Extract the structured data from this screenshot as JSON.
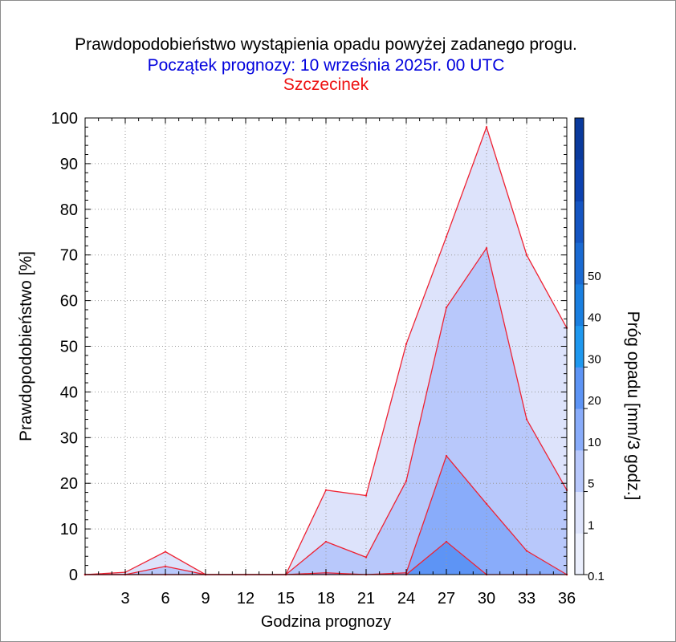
{
  "title": "Prawdopodobieństwo wystąpienia opadu powyżej zadanego progu.",
  "subtitle": "Początek prognozy: 10 września 2025r. 00 UTC",
  "location": "Szczecinek",
  "colors": {
    "title": "#000000",
    "subtitle": "#0000dd",
    "location": "#ee1111",
    "series_line": "#ee2233",
    "frame": "#8c8c8c"
  },
  "chart_data": {
    "type": "area",
    "xlabel": "Godzina prognozy",
    "ylabel": "Prawdopodobieństwo [%]",
    "x": [
      0,
      3,
      6,
      9,
      12,
      15,
      18,
      21,
      24,
      27,
      30,
      33,
      36
    ],
    "xticks": [
      3,
      6,
      9,
      12,
      15,
      18,
      21,
      24,
      27,
      30,
      33,
      36
    ],
    "xlim": [
      0,
      36
    ],
    "ylim": [
      0,
      100
    ],
    "yticks": [
      0,
      10,
      20,
      30,
      40,
      50,
      60,
      70,
      80,
      90,
      100
    ],
    "grid": true,
    "series": [
      {
        "name": "0.1",
        "color": "#dde3fb",
        "values": [
          0,
          0.5,
          5,
          0,
          0,
          0,
          18.5,
          17.3,
          50.5,
          74,
          98,
          70,
          54
        ]
      },
      {
        "name": "1",
        "color": "#b8c8fb",
        "values": [
          0,
          0,
          1.8,
          0,
          0,
          0,
          7.2,
          3.8,
          20.5,
          58.5,
          71.5,
          34,
          18.5
        ]
      },
      {
        "name": "5",
        "color": "#89acfa",
        "values": [
          0,
          0,
          0,
          0,
          0,
          0,
          0.4,
          0,
          0.4,
          26,
          15.5,
          5.2,
          0
        ]
      },
      {
        "name": "10",
        "color": "#5d94f5",
        "values": [
          0,
          0,
          0,
          0,
          0,
          0,
          0,
          0,
          0,
          7.2,
          0,
          0,
          0
        ]
      }
    ],
    "colorbar": {
      "label": "Próg opadu [mm/3 godz.]",
      "ticks": [
        "0.1",
        "1",
        "5",
        "10",
        "20",
        "30",
        "40",
        "50"
      ],
      "colors": [
        "#ebeffd",
        "#dde3fb",
        "#b8c8fb",
        "#89acfa",
        "#5d94f5",
        "#1f98ef",
        "#1a7fe0",
        "#1a6ad2",
        "#1555c2",
        "#0d42b0",
        "#0a3a9c"
      ]
    }
  }
}
